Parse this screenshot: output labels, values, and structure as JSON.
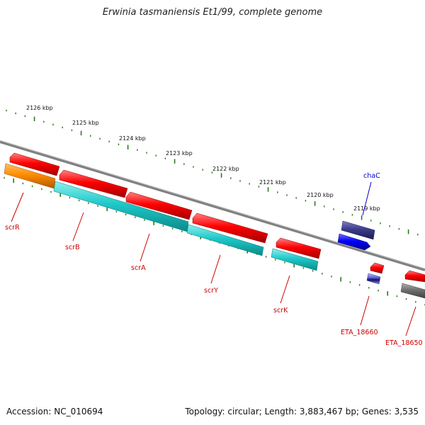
{
  "title": "Erwinia tasmaniensis Et1/99, complete genome",
  "footer": {
    "accession": "Accession: NC_010694",
    "summary": "Topology: circular; Length: 3,883,467 bp; Genes: 3,535"
  },
  "scale_labels": [
    "2126 kbp",
    "2125 kbp",
    "2124 kbp",
    "2123 kbp",
    "2122 kbp",
    "2121 kbp",
    "2120 kbp",
    "2119 kbp"
  ],
  "genes": [
    {
      "name": "scrR",
      "color": "#cc0000"
    },
    {
      "name": "scrB",
      "color": "#cc0000"
    },
    {
      "name": "scrA",
      "color": "#cc0000"
    },
    {
      "name": "scrY",
      "color": "#cc0000"
    },
    {
      "name": "scrK",
      "color": "#cc0000"
    },
    {
      "name": "chaC",
      "color": "#0000cc"
    },
    {
      "name": "ETA_18660",
      "color": "#cc0000"
    },
    {
      "name": "ETA_18650",
      "color": "#cc0000"
    }
  ],
  "colors": {
    "backbone": "#7a7a7a",
    "tick": "#2a7a1a",
    "cds_forward": "#ff0000",
    "cds_reverse": "#0000ff",
    "orange_feature": "#ff8c00",
    "cyan_feature": "#1ec8c8",
    "navy_feature": "#3c3c8c",
    "gray_feature": "#707070"
  }
}
